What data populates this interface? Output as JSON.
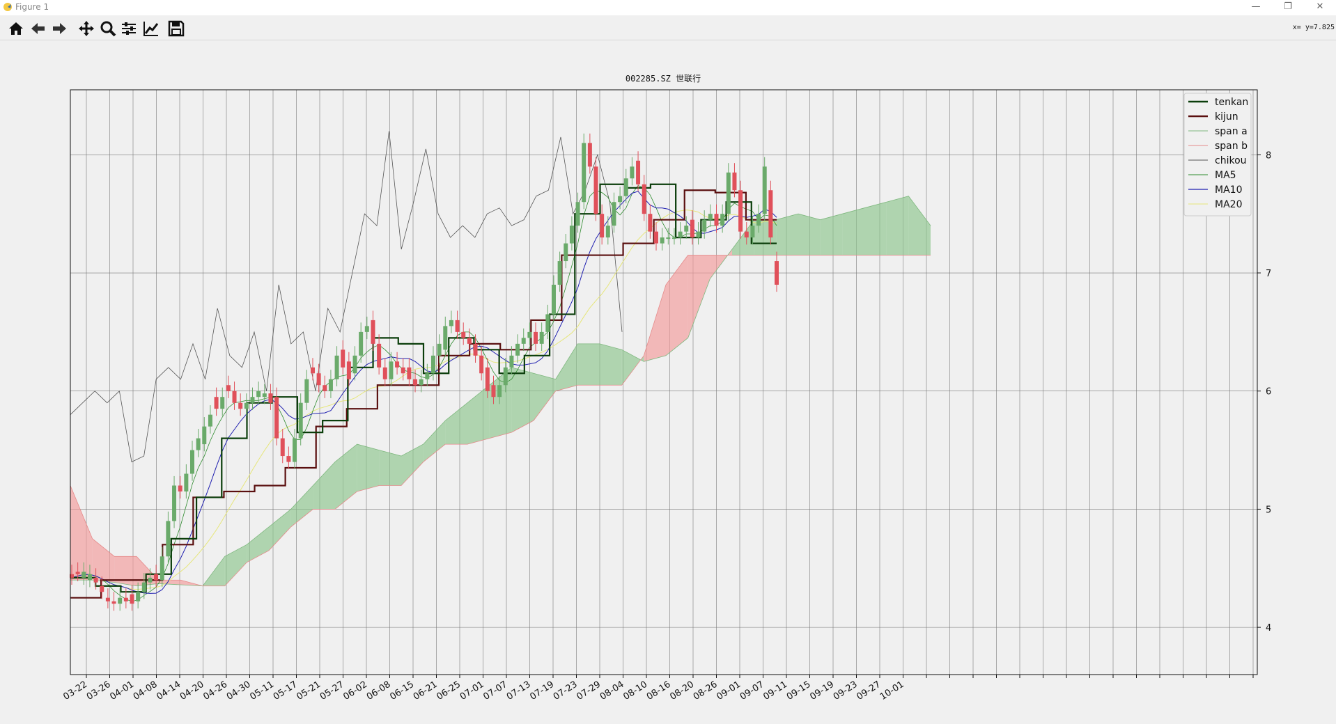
{
  "window": {
    "title": "Figure 1",
    "coord_readout": "x= y=7.825"
  },
  "toolbar": {
    "buttons": [
      {
        "name": "home-icon"
      },
      {
        "name": "back-arrow-icon"
      },
      {
        "name": "forward-arrow-icon"
      },
      {
        "name": "pan-icon"
      },
      {
        "name": "zoom-icon"
      },
      {
        "name": "configure-subplots-icon"
      },
      {
        "name": "edit-axis-icon"
      },
      {
        "name": "save-icon"
      }
    ]
  },
  "chart_data": {
    "type": "candlestick",
    "title": "002285.SZ 世联行",
    "xlabel": "",
    "ylabel": "",
    "ylim": [
      3.6,
      8.55
    ],
    "yticks": [
      4,
      5,
      6,
      7,
      8
    ],
    "grid": true,
    "legend_position": "top-right",
    "colors": {
      "up": "#6aaa6a",
      "down": "#e0505a",
      "cloud_bull": "#8cc48c",
      "cloud_bear": "#f29a9a",
      "tenkan": "#0a3d0a",
      "kijun": "#5a0f0f",
      "span_a": "#7fb87f",
      "span_b": "#e58a8a",
      "chikou": "#555555",
      "ma5": "#2e8b2e",
      "ma10": "#1f1fb0",
      "ma20": "#e6e67a"
    },
    "xticks": [
      "03-22",
      "03-26",
      "04-01",
      "04-08",
      "04-14",
      "04-20",
      "04-26",
      "04-30",
      "05-11",
      "05-17",
      "05-21",
      "05-27",
      "06-02",
      "06-08",
      "06-15",
      "06-21",
      "06-25",
      "07-01",
      "07-07",
      "07-13",
      "07-19",
      "07-23",
      "07-29",
      "08-04",
      "08-10",
      "08-16",
      "08-20",
      "08-26",
      "09-01",
      "09-07",
      "09-11",
      "09-15",
      "09-19",
      "09-23",
      "09-27",
      "10-01"
    ],
    "legend": [
      "tenkan",
      "kijun",
      "span a",
      "span b",
      "chikou",
      "MA5",
      "MA10",
      "MA20"
    ],
    "series": {
      "close": [
        4.42,
        4.45,
        4.47,
        4.45,
        4.38,
        4.3,
        4.22,
        4.2,
        4.25,
        4.22,
        4.2,
        4.3,
        4.38,
        4.42,
        4.4,
        4.6,
        4.9,
        5.2,
        5.15,
        5.3,
        5.5,
        5.6,
        5.7,
        5.8,
        5.85,
        5.95,
        6.0,
        5.9,
        5.85,
        5.9,
        5.95,
        6.0,
        5.98,
        5.9,
        5.6,
        5.45,
        5.4,
        5.6,
        5.9,
        6.1,
        6.15,
        6.05,
        6.0,
        6.1,
        6.3,
        6.2,
        6.1,
        6.3,
        6.5,
        6.55,
        6.4,
        6.2,
        6.1,
        6.25,
        6.2,
        6.15,
        6.1,
        6.05,
        6.1,
        6.15,
        6.3,
        6.4,
        6.55,
        6.6,
        6.5,
        6.45,
        6.4,
        6.3,
        6.15,
        6.0,
        5.95,
        6.05,
        6.2,
        6.3,
        6.4,
        6.45,
        6.5,
        6.4,
        6.5,
        6.65,
        6.9,
        7.1,
        7.25,
        7.4,
        7.6,
        8.1,
        7.9,
        7.5,
        7.3,
        7.4,
        7.6,
        7.65,
        7.8,
        7.9,
        7.75,
        7.5,
        7.35,
        7.25,
        7.3,
        7.3,
        7.3,
        7.35,
        7.4,
        7.3,
        7.35,
        7.45,
        7.5,
        7.4,
        7.5,
        7.85,
        7.7,
        7.35,
        7.3,
        7.4,
        7.5,
        7.9,
        7.3,
        6.9
      ],
      "open": [
        4.45,
        4.47,
        4.42,
        4.4,
        4.42,
        4.35,
        4.25,
        4.22,
        4.2,
        4.25,
        4.28,
        4.22,
        4.3,
        4.38,
        4.45,
        4.4,
        4.6,
        4.9,
        5.2,
        5.15,
        5.3,
        5.5,
        5.55,
        5.7,
        5.95,
        5.85,
        6.05,
        6.0,
        5.9,
        5.85,
        5.9,
        5.95,
        5.95,
        5.98,
        5.95,
        5.6,
        5.45,
        5.4,
        5.6,
        5.9,
        6.2,
        6.15,
        6.05,
        6.0,
        6.1,
        6.35,
        6.25,
        6.15,
        6.3,
        6.5,
        6.6,
        6.4,
        6.2,
        6.1,
        6.25,
        6.2,
        6.2,
        6.1,
        6.05,
        6.1,
        6.15,
        6.3,
        6.35,
        6.55,
        6.6,
        6.5,
        6.45,
        6.4,
        6.3,
        6.2,
        6.05,
        5.95,
        6.05,
        6.2,
        6.3,
        6.4,
        6.45,
        6.5,
        6.4,
        6.5,
        6.65,
        6.9,
        7.1,
        7.25,
        7.4,
        7.6,
        8.1,
        7.9,
        7.5,
        7.3,
        7.4,
        7.6,
        7.65,
        7.8,
        7.95,
        7.75,
        7.5,
        7.35,
        7.25,
        7.3,
        7.3,
        7.3,
        7.35,
        7.45,
        7.3,
        7.35,
        7.45,
        7.5,
        7.4,
        7.5,
        7.85,
        7.7,
        7.35,
        7.3,
        7.4,
        7.5,
        7.7,
        7.1
      ],
      "tenkan_levels": [
        4.42,
        4.35,
        4.3,
        4.45,
        4.75,
        5.1,
        5.6,
        5.9,
        5.95,
        5.65,
        5.75,
        6.2,
        6.45,
        6.4,
        6.15,
        6.45,
        6.35,
        6.15,
        6.3,
        6.65,
        7.5,
        7.75,
        7.72,
        7.75,
        7.3,
        7.45,
        7.6,
        7.25
      ],
      "kijun_levels": [
        4.25,
        4.4,
        4.4,
        4.7,
        5.1,
        5.15,
        5.2,
        5.35,
        5.7,
        5.85,
        6.05,
        6.05,
        6.3,
        6.4,
        6.35,
        6.6,
        7.15,
        7.15,
        7.25,
        7.45,
        7.7,
        7.68,
        7.45
      ],
      "chikou": [
        5.8,
        5.9,
        6.0,
        5.9,
        6.0,
        5.4,
        5.45,
        6.1,
        6.2,
        6.1,
        6.4,
        6.1,
        6.7,
        6.3,
        6.2,
        6.5,
        6.0,
        6.9,
        6.4,
        6.5,
        6.0,
        6.7,
        6.5,
        7.0,
        7.5,
        7.4,
        8.2,
        7.2,
        7.6,
        8.05,
        7.5,
        7.3,
        7.4,
        7.3,
        7.5,
        7.55,
        7.4,
        7.45,
        7.65,
        7.7,
        8.15,
        7.5,
        7.7,
        8.0,
        7.6,
        6.5
      ],
      "span_a": [
        4.4,
        4.4,
        4.38,
        4.35,
        4.37,
        4.36,
        4.35,
        4.6,
        4.7,
        4.85,
        5.0,
        5.2,
        5.4,
        5.55,
        5.5,
        5.45,
        5.55,
        5.75,
        5.9,
        6.05,
        6.2,
        6.15,
        6.1,
        6.4,
        6.4,
        6.35,
        6.25,
        6.3,
        6.45,
        6.95,
        7.2,
        7.45,
        7.45,
        7.5,
        7.45,
        7.5,
        7.55,
        7.6,
        7.65,
        7.4
      ],
      "span_b": [
        5.2,
        4.75,
        4.6,
        4.6,
        4.4,
        4.4,
        4.35,
        4.35,
        4.55,
        4.65,
        4.85,
        5.0,
        5.0,
        5.15,
        5.2,
        5.2,
        5.4,
        5.55,
        5.55,
        5.6,
        5.65,
        5.75,
        6.0,
        6.05,
        6.05,
        6.05,
        6.3,
        6.9,
        7.15,
        7.15,
        7.15,
        7.15,
        7.15,
        7.15,
        7.15,
        7.15,
        7.15,
        7.15,
        7.15,
        7.15
      ]
    }
  }
}
